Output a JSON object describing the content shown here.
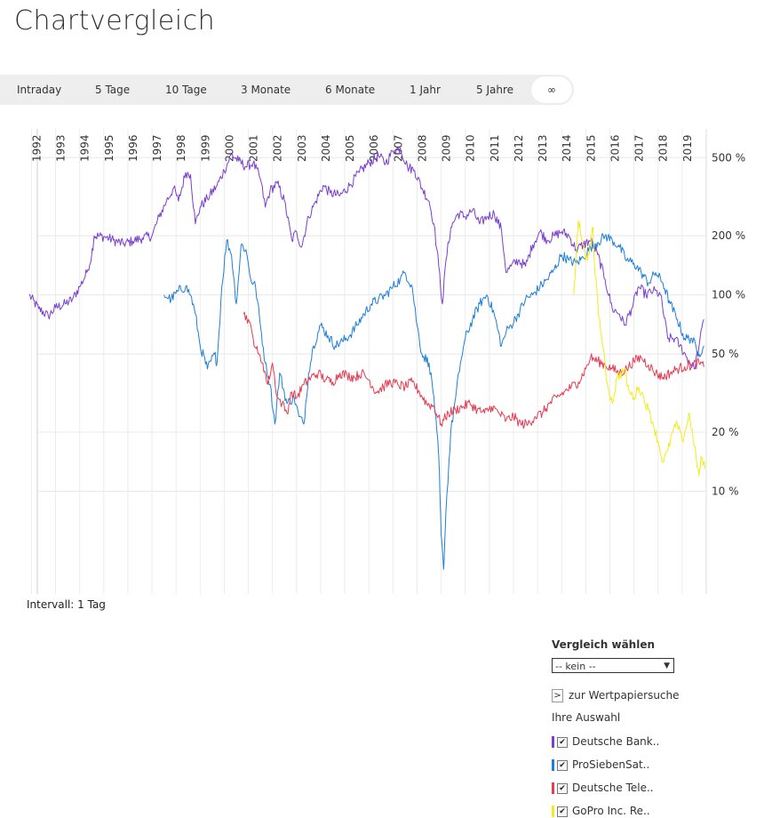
{
  "page_title": "Chartvergleich",
  "tabs": [
    {
      "label": "Intraday",
      "active": false
    },
    {
      "label": "5 Tage",
      "active": false
    },
    {
      "label": "10 Tage",
      "active": false
    },
    {
      "label": "3 Monate",
      "active": false
    },
    {
      "label": "6 Monate",
      "active": false
    },
    {
      "label": "1 Jahr",
      "active": false
    },
    {
      "label": "5 Jahre",
      "active": false
    },
    {
      "label": "∞",
      "active": true
    }
  ],
  "interval_label": "Intervall: 1 Tag",
  "panel": {
    "heading": "Vergleich wählen",
    "select_value": "-- kein --",
    "search_link": "zur Wertpapiersuche",
    "selection_label": "Ihre Auswahl",
    "search_icon": "chevron-right-icon",
    "checkbox_icon": "checkmark-icon"
  },
  "chart_data": {
    "type": "line",
    "y_scale": "log",
    "x_range": [
      1991.8,
      2020.0
    ],
    "y_range_percent": [
      3,
      700
    ],
    "grid": true,
    "legend_placement": "bottom-right-panel",
    "x_ticks": [
      "1992",
      "1993",
      "1994",
      "1995",
      "1996",
      "1997",
      "1998",
      "1999",
      "2000",
      "2001",
      "2002",
      "2003",
      "2004",
      "2005",
      "2006",
      "2007",
      "2008",
      "2009",
      "2010",
      "2011",
      "2012",
      "2013",
      "2014",
      "2015",
      "2016",
      "2017",
      "2018",
      "2019"
    ],
    "y_ticks": [
      {
        "value": 10,
        "label": "10 %"
      },
      {
        "value": 20,
        "label": "20 %"
      },
      {
        "value": 50,
        "label": "50 %"
      },
      {
        "value": 100,
        "label": "100 %"
      },
      {
        "value": 200,
        "label": "200 %"
      },
      {
        "value": 500,
        "label": "500 %"
      }
    ],
    "series": [
      {
        "name": "Deutsche Bank..",
        "color": "#7a3fcf",
        "points": [
          [
            1991.9,
            100
          ],
          [
            1992.3,
            85
          ],
          [
            1992.7,
            78
          ],
          [
            1993.0,
            86
          ],
          [
            1993.4,
            90
          ],
          [
            1993.7,
            95
          ],
          [
            1994.0,
            110
          ],
          [
            1994.3,
            130
          ],
          [
            1994.5,
            160
          ],
          [
            1994.6,
            200
          ],
          [
            1995.0,
            198
          ],
          [
            1995.4,
            190
          ],
          [
            1995.8,
            182
          ],
          [
            1996.2,
            188
          ],
          [
            1996.6,
            195
          ],
          [
            1997.0,
            200
          ],
          [
            1997.3,
            250
          ],
          [
            1997.6,
            300
          ],
          [
            1997.9,
            350
          ],
          [
            1998.1,
            300
          ],
          [
            1998.4,
            420
          ],
          [
            1998.6,
            410
          ],
          [
            1998.8,
            230
          ],
          [
            1999.0,
            280
          ],
          [
            1999.3,
            310
          ],
          [
            1999.7,
            360
          ],
          [
            2000.0,
            430
          ],
          [
            2000.3,
            520
          ],
          [
            2000.6,
            480
          ],
          [
            2000.9,
            450
          ],
          [
            2001.2,
            470
          ],
          [
            2001.5,
            390
          ],
          [
            2001.7,
            280
          ],
          [
            2001.9,
            340
          ],
          [
            2002.2,
            370
          ],
          [
            2002.5,
            300
          ],
          [
            2002.8,
            190
          ],
          [
            2003.0,
            210
          ],
          [
            2003.2,
            175
          ],
          [
            2003.5,
            250
          ],
          [
            2003.8,
            300
          ],
          [
            2004.1,
            360
          ],
          [
            2004.4,
            330
          ],
          [
            2004.8,
            320
          ],
          [
            2005.2,
            360
          ],
          [
            2005.6,
            420
          ],
          [
            2006.0,
            470
          ],
          [
            2006.4,
            510
          ],
          [
            2006.7,
            470
          ],
          [
            2007.0,
            540
          ],
          [
            2007.3,
            560
          ],
          [
            2007.6,
            450
          ],
          [
            2007.9,
            430
          ],
          [
            2008.2,
            350
          ],
          [
            2008.5,
            300
          ],
          [
            2008.7,
            230
          ],
          [
            2008.9,
            140
          ],
          [
            2009.05,
            90
          ],
          [
            2009.2,
            150
          ],
          [
            2009.4,
            220
          ],
          [
            2009.7,
            260
          ],
          [
            2010.0,
            250
          ],
          [
            2010.3,
            270
          ],
          [
            2010.6,
            230
          ],
          [
            2010.9,
            250
          ],
          [
            2011.2,
            260
          ],
          [
            2011.5,
            215
          ],
          [
            2011.7,
            130
          ],
          [
            2011.9,
            140
          ],
          [
            2012.2,
            150
          ],
          [
            2012.5,
            140
          ],
          [
            2012.8,
            180
          ],
          [
            2013.1,
            210
          ],
          [
            2013.4,
            190
          ],
          [
            2013.7,
            200
          ],
          [
            2014.0,
            210
          ],
          [
            2014.3,
            200
          ],
          [
            2014.6,
            170
          ],
          [
            2014.9,
            180
          ],
          [
            2015.2,
            190
          ],
          [
            2015.5,
            160
          ],
          [
            2015.8,
            120
          ],
          [
            2016.1,
            85
          ],
          [
            2016.4,
            80
          ],
          [
            2016.6,
            70
          ],
          [
            2016.9,
            85
          ],
          [
            2017.2,
            110
          ],
          [
            2017.5,
            100
          ],
          [
            2017.8,
            105
          ],
          [
            2018.1,
            100
          ],
          [
            2018.4,
            60
          ],
          [
            2018.7,
            60
          ],
          [
            2018.9,
            55
          ],
          [
            2019.2,
            48
          ],
          [
            2019.5,
            42
          ],
          [
            2019.7,
            55
          ],
          [
            2019.9,
            75
          ]
        ]
      },
      {
        "name": "ProSiebenSat..",
        "color": "#1f7fd6",
        "points": [
          [
            1997.5,
            100
          ],
          [
            1997.8,
            95
          ],
          [
            1998.1,
            105
          ],
          [
            1998.4,
            110
          ],
          [
            1998.6,
            100
          ],
          [
            1998.8,
            80
          ],
          [
            1999.0,
            55
          ],
          [
            1999.3,
            42
          ],
          [
            1999.6,
            50
          ],
          [
            1999.7,
            45
          ],
          [
            1999.9,
            110
          ],
          [
            2000.1,
            190
          ],
          [
            2000.3,
            160
          ],
          [
            2000.5,
            90
          ],
          [
            2000.7,
            180
          ],
          [
            2000.9,
            170
          ],
          [
            2001.1,
            120
          ],
          [
            2001.3,
            110
          ],
          [
            2001.5,
            70
          ],
          [
            2001.7,
            45
          ],
          [
            2001.9,
            35
          ],
          [
            2002.1,
            22
          ],
          [
            2002.3,
            40
          ],
          [
            2002.6,
            28
          ],
          [
            2002.9,
            30
          ],
          [
            2003.1,
            24
          ],
          [
            2003.3,
            22
          ],
          [
            2003.5,
            40
          ],
          [
            2003.7,
            55
          ],
          [
            2004.0,
            70
          ],
          [
            2004.3,
            62
          ],
          [
            2004.6,
            55
          ],
          [
            2004.9,
            58
          ],
          [
            2005.2,
            62
          ],
          [
            2005.5,
            70
          ],
          [
            2005.8,
            80
          ],
          [
            2006.1,
            90
          ],
          [
            2006.4,
            95
          ],
          [
            2006.7,
            100
          ],
          [
            2007.0,
            110
          ],
          [
            2007.3,
            120
          ],
          [
            2007.5,
            130
          ],
          [
            2007.8,
            110
          ],
          [
            2008.0,
            70
          ],
          [
            2008.2,
            50
          ],
          [
            2008.5,
            45
          ],
          [
            2008.7,
            30
          ],
          [
            2008.9,
            15
          ],
          [
            2009.0,
            6
          ],
          [
            2009.1,
            4
          ],
          [
            2009.2,
            8
          ],
          [
            2009.4,
            20
          ],
          [
            2009.6,
            30
          ],
          [
            2009.8,
            45
          ],
          [
            2010.0,
            60
          ],
          [
            2010.3,
            75
          ],
          [
            2010.6,
            90
          ],
          [
            2010.9,
            100
          ],
          [
            2011.2,
            80
          ],
          [
            2011.5,
            55
          ],
          [
            2011.7,
            65
          ],
          [
            2011.9,
            70
          ],
          [
            2012.2,
            80
          ],
          [
            2012.5,
            95
          ],
          [
            2012.8,
            100
          ],
          [
            2013.1,
            110
          ],
          [
            2013.4,
            120
          ],
          [
            2013.7,
            135
          ],
          [
            2014.0,
            160
          ],
          [
            2014.3,
            150
          ],
          [
            2014.6,
            145
          ],
          [
            2014.9,
            155
          ],
          [
            2015.2,
            175
          ],
          [
            2015.5,
            185
          ],
          [
            2015.8,
            200
          ],
          [
            2016.1,
            190
          ],
          [
            2016.4,
            175
          ],
          [
            2016.7,
            150
          ],
          [
            2017.0,
            145
          ],
          [
            2017.3,
            130
          ],
          [
            2017.6,
            115
          ],
          [
            2017.9,
            130
          ],
          [
            2018.2,
            115
          ],
          [
            2018.5,
            90
          ],
          [
            2018.8,
            75
          ],
          [
            2019.1,
            60
          ],
          [
            2019.4,
            60
          ],
          [
            2019.7,
            50
          ],
          [
            2019.9,
            55
          ]
        ]
      },
      {
        "name": "Deutsche Tele..",
        "color": "#e43c53",
        "points": [
          [
            2000.8,
            80
          ],
          [
            2001.0,
            75
          ],
          [
            2001.2,
            60
          ],
          [
            2001.4,
            50
          ],
          [
            2001.6,
            45
          ],
          [
            2001.8,
            35
          ],
          [
            2002.0,
            45
          ],
          [
            2002.2,
            30
          ],
          [
            2002.4,
            28
          ],
          [
            2002.6,
            25
          ],
          [
            2002.8,
            32
          ],
          [
            2003.0,
            30
          ],
          [
            2003.3,
            35
          ],
          [
            2003.6,
            38
          ],
          [
            2003.9,
            40
          ],
          [
            2004.2,
            37
          ],
          [
            2004.5,
            36
          ],
          [
            2004.8,
            40
          ],
          [
            2005.1,
            39
          ],
          [
            2005.4,
            38
          ],
          [
            2005.7,
            40
          ],
          [
            2006.0,
            37
          ],
          [
            2006.3,
            32
          ],
          [
            2006.6,
            34
          ],
          [
            2006.9,
            36
          ],
          [
            2007.2,
            35
          ],
          [
            2007.5,
            34
          ],
          [
            2007.8,
            36
          ],
          [
            2008.1,
            32
          ],
          [
            2008.4,
            28
          ],
          [
            2008.7,
            27
          ],
          [
            2009.0,
            22
          ],
          [
            2009.3,
            25
          ],
          [
            2009.6,
            26
          ],
          [
            2009.9,
            27
          ],
          [
            2010.2,
            28
          ],
          [
            2010.5,
            26
          ],
          [
            2010.8,
            25
          ],
          [
            2011.1,
            27
          ],
          [
            2011.4,
            25
          ],
          [
            2011.7,
            23
          ],
          [
            2012.0,
            24
          ],
          [
            2012.3,
            22
          ],
          [
            2012.6,
            22
          ],
          [
            2012.9,
            24
          ],
          [
            2013.2,
            25
          ],
          [
            2013.5,
            28
          ],
          [
            2013.8,
            30
          ],
          [
            2014.1,
            32
          ],
          [
            2014.4,
            34
          ],
          [
            2014.7,
            36
          ],
          [
            2015.0,
            42
          ],
          [
            2015.2,
            48
          ],
          [
            2015.5,
            46
          ],
          [
            2015.8,
            44
          ],
          [
            2016.1,
            42
          ],
          [
            2016.4,
            40
          ],
          [
            2016.7,
            42
          ],
          [
            2017.0,
            46
          ],
          [
            2017.3,
            48
          ],
          [
            2017.6,
            44
          ],
          [
            2017.9,
            40
          ],
          [
            2018.2,
            38
          ],
          [
            2018.5,
            40
          ],
          [
            2018.8,
            42
          ],
          [
            2019.1,
            43
          ],
          [
            2019.4,
            44
          ],
          [
            2019.7,
            45
          ],
          [
            2019.9,
            43
          ]
        ]
      },
      {
        "name": "GoPro Inc. Re..",
        "color": "#f4ec1a",
        "points": [
          [
            2014.5,
            100
          ],
          [
            2014.6,
            160
          ],
          [
            2014.7,
            240
          ],
          [
            2014.8,
            200
          ],
          [
            2014.9,
            180
          ],
          [
            2015.0,
            150
          ],
          [
            2015.1,
            160
          ],
          [
            2015.2,
            180
          ],
          [
            2015.3,
            220
          ],
          [
            2015.35,
            150
          ],
          [
            2015.5,
            90
          ],
          [
            2015.7,
            55
          ],
          [
            2015.9,
            35
          ],
          [
            2016.1,
            28
          ],
          [
            2016.3,
            38
          ],
          [
            2016.5,
            40
          ],
          [
            2016.6,
            42
          ],
          [
            2016.8,
            32
          ],
          [
            2017.0,
            30
          ],
          [
            2017.2,
            34
          ],
          [
            2017.4,
            30
          ],
          [
            2017.6,
            26
          ],
          [
            2017.8,
            22
          ],
          [
            2018.0,
            18
          ],
          [
            2018.2,
            14
          ],
          [
            2018.4,
            16
          ],
          [
            2018.6,
            20
          ],
          [
            2018.8,
            22
          ],
          [
            2019.0,
            18
          ],
          [
            2019.2,
            22
          ],
          [
            2019.3,
            25
          ],
          [
            2019.5,
            17
          ],
          [
            2019.7,
            12
          ],
          [
            2019.8,
            15
          ],
          [
            2019.95,
            13
          ]
        ]
      }
    ]
  }
}
